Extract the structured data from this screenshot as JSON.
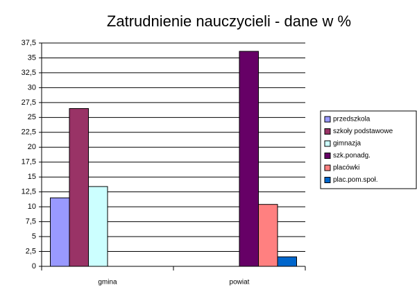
{
  "chart_data": {
    "type": "bar",
    "title": "Zatrudnienie nauczycieli - dane w %",
    "categories": [
      "gmina",
      "powiat"
    ],
    "series": [
      {
        "name": "przedszkola",
        "color": "#9999ff",
        "values": [
          11.5,
          0
        ]
      },
      {
        "name": "szkoły podstawowe",
        "color": "#993366",
        "values": [
          26.5,
          0
        ]
      },
      {
        "name": "gimnazja",
        "color": "#ccffff",
        "values": [
          13.4,
          0
        ]
      },
      {
        "name": "szk.ponadg.",
        "color": "#660066",
        "values": [
          0,
          36.1
        ]
      },
      {
        "name": "placówki",
        "color": "#ff8080",
        "values": [
          0,
          10.4
        ]
      },
      {
        "name": "plac.pom.społ.",
        "color": "#0066cc",
        "values": [
          0,
          1.6
        ]
      }
    ],
    "ylim": [
      0,
      37.5
    ],
    "yticks": [
      0,
      {
        "value": 2.5,
        "label": "2,5"
      },
      5,
      {
        "value": 7.5,
        "label": "7,5"
      },
      10,
      {
        "value": 12.5,
        "label": "12,5"
      },
      15,
      {
        "value": 17.5,
        "label": "17,5"
      },
      20,
      {
        "value": 22.5,
        "label": "22,5"
      },
      25,
      {
        "value": 27.5,
        "label": "27,5"
      },
      30,
      {
        "value": 32.5,
        "label": "32,5"
      },
      35,
      {
        "value": 37.5,
        "label": "37,5"
      }
    ],
    "grid": true,
    "legend": "right"
  }
}
